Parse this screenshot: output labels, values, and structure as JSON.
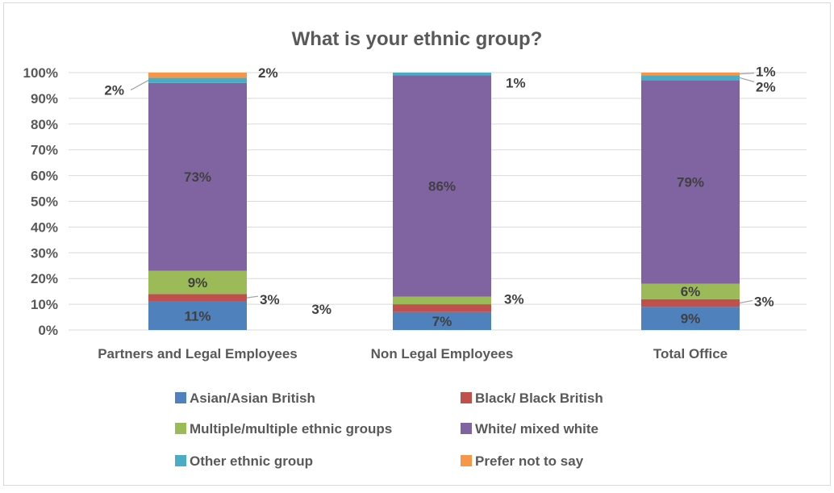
{
  "chart_data": {
    "type": "bar",
    "stacked": true,
    "percent_stacked": true,
    "title": "What is your ethnic group?",
    "xlabel": "",
    "ylabel": "",
    "ylim": [
      0,
      100
    ],
    "y_ticks": [
      "0%",
      "10%",
      "20%",
      "30%",
      "40%",
      "50%",
      "60%",
      "70%",
      "80%",
      "90%",
      "100%"
    ],
    "grid": true,
    "legend_position": "bottom",
    "categories": [
      "Partners and Legal Employees",
      "Non Legal Employees",
      "Total Office"
    ],
    "series": [
      {
        "name": "Asian/Asian British",
        "color": "#4f81bd",
        "values": [
          11,
          7,
          9
        ],
        "labels": [
          "11%",
          "7%",
          "9%"
        ]
      },
      {
        "name": "Black/ Black British",
        "color": "#c0504d",
        "values": [
          3,
          3,
          3
        ],
        "labels": [
          "3%",
          "3%",
          "3%"
        ]
      },
      {
        "name": "Multiple/multiple ethnic groups",
        "color": "#9bbb59",
        "values": [
          9,
          3,
          6
        ],
        "labels": [
          "9%",
          "3%",
          "6%"
        ]
      },
      {
        "name": "White/ mixed white",
        "color": "#8064a2",
        "values": [
          73,
          86,
          79
        ],
        "labels": [
          "73%",
          "86%",
          "79%"
        ]
      },
      {
        "name": "Other ethnic group",
        "color": "#4bacc6",
        "values": [
          2,
          1,
          2
        ],
        "labels": [
          "2%",
          "1%",
          "2%"
        ]
      },
      {
        "name": "Prefer not to say",
        "color": "#f79646",
        "values": [
          2,
          0,
          1
        ],
        "labels": [
          "2%",
          "",
          "1%"
        ]
      }
    ]
  }
}
